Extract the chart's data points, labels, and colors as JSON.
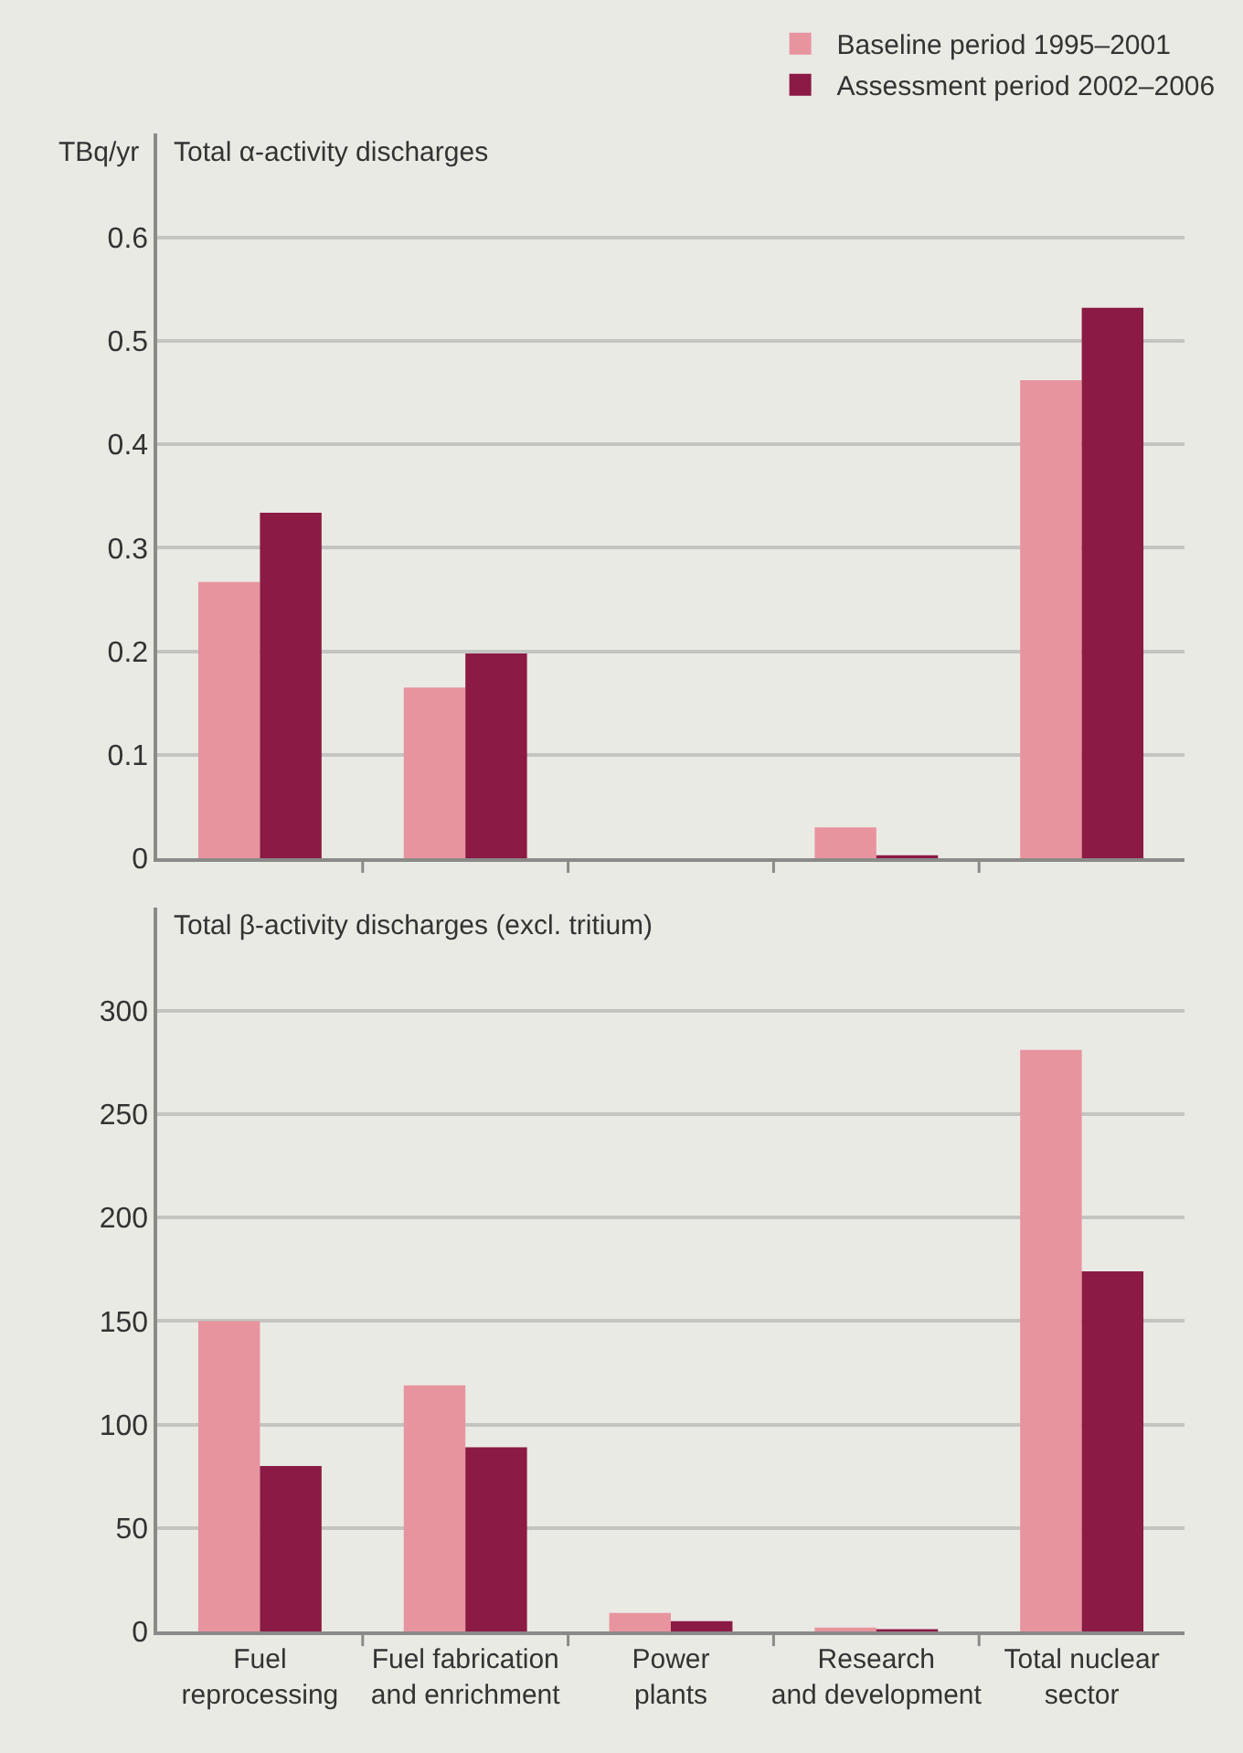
{
  "chart_data": [
    {
      "type": "bar",
      "title": "Total α-activity discharges",
      "ylabel": "TBq/yr",
      "categories": [
        null,
        null,
        null,
        null,
        null
      ],
      "series": [
        {
          "name": "Baseline period 1995–2001",
          "color": "#e8949f",
          "values": [
            0.267,
            0.165,
            0,
            0.03,
            0.462
          ]
        },
        {
          "name": "Assessment period 2002–2006",
          "color": "#8b1a45",
          "values": [
            0.334,
            0.198,
            0,
            0.003,
            0.532
          ]
        }
      ],
      "ylim": [
        0,
        0.7
      ],
      "yticks": [
        0,
        0.1,
        0.2,
        0.3,
        0.4,
        0.5,
        0.6
      ],
      "grid": "y",
      "legend": "top right",
      "tick_labels": "y"
    },
    {
      "type": "bar",
      "title": "Total β-activity discharges (excl. tritium)",
      "categories": [
        "Fuel\nreprocessing",
        "Fuel fabrication\nand enrichment",
        "Power\nplants",
        "Research\nand development",
        "Total nuclear\nsector"
      ],
      "series": [
        {
          "color": "#e8949f",
          "values": [
            150,
            119,
            9,
            2,
            281
          ]
        },
        {
          "color": "#8b1a45",
          "values": [
            80,
            89,
            5,
            1,
            174
          ]
        }
      ],
      "ylim": [
        0,
        350
      ],
      "yticks": [
        0,
        50,
        100,
        150,
        200,
        250,
        300
      ],
      "grid": "y"
    }
  ]
}
